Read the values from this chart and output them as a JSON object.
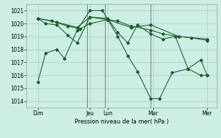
{
  "background_color": "#cceee4",
  "grid_color": "#aaccbb",
  "line_color": "#1a5c28",
  "xlabel": "Pression niveau de la mer( hPa )",
  "ylim": [
    1013.5,
    1021.5
  ],
  "yticks": [
    1014,
    1015,
    1016,
    1017,
    1018,
    1019,
    1020,
    1021
  ],
  "xlim": [
    0,
    300
  ],
  "xtick_labels": [
    "Dim",
    "Jeu",
    "Lun",
    "Mar",
    "Mer"
  ],
  "xtick_positions": [
    18,
    100,
    128,
    200,
    285
  ],
  "vlines": [
    96,
    124,
    196
  ],
  "series": [
    {
      "x": [
        18,
        30,
        48,
        60,
        80,
        100,
        120,
        144,
        160,
        175,
        196,
        210,
        230,
        255,
        275,
        285
      ],
      "y": [
        1015.5,
        1017.7,
        1018.0,
        1017.3,
        1019.5,
        1021.0,
        1021.0,
        1019.0,
        1017.5,
        1016.3,
        1014.2,
        1014.2,
        1016.2,
        1016.5,
        1017.2,
        1016.0
      ]
    },
    {
      "x": [
        18,
        30,
        48,
        65,
        80,
        100,
        128,
        144,
        160,
        175,
        196,
        215,
        235,
        255,
        275,
        285
      ],
      "y": [
        1020.4,
        1020.0,
        1019.9,
        1019.1,
        1018.5,
        1020.5,
        1020.4,
        1019.3,
        1018.5,
        1019.9,
        1019.2,
        1018.8,
        1019.0,
        1016.5,
        1016.0,
        1016.0
      ]
    },
    {
      "x": [
        18,
        40,
        65,
        85,
        100,
        128,
        144,
        165,
        196,
        215,
        240,
        260,
        285
      ],
      "y": [
        1020.4,
        1020.2,
        1019.8,
        1019.6,
        1020.0,
        1020.3,
        1020.2,
        1019.8,
        1019.5,
        1019.2,
        1019.0,
        1018.9,
        1018.7
      ]
    },
    {
      "x": [
        18,
        48,
        80,
        100,
        128,
        165,
        196,
        240,
        285
      ],
      "y": [
        1020.4,
        1020.1,
        1019.7,
        1020.5,
        1020.3,
        1019.7,
        1019.9,
        1019.0,
        1018.8
      ]
    }
  ]
}
